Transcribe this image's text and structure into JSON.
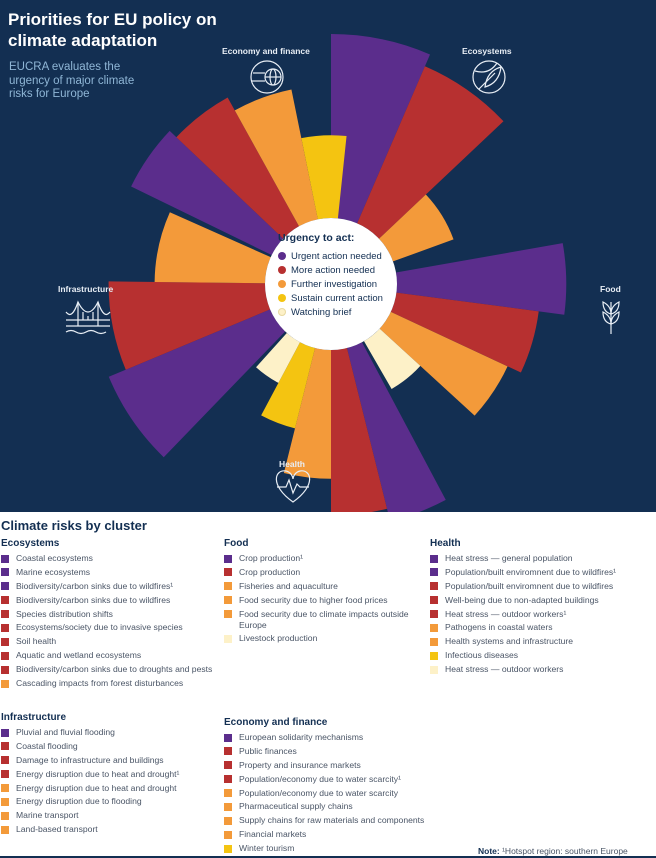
{
  "header": {
    "title": "Priorities for EU policy on climate adaptation",
    "subtitle": "EUCRA evaluates the urgency of major climate risks for Europe"
  },
  "clusters_ring": {
    "economy": "Economy and finance",
    "ecosystems": "Ecosystems",
    "food": "Food",
    "health": "Health",
    "infrastructure": "Infrastructure"
  },
  "legend": {
    "title": "Urgency to act:",
    "items": [
      {
        "label": "Urgent action needed",
        "color": "#5b2d8c"
      },
      {
        "label": "More action needed",
        "color": "#b73030"
      },
      {
        "label": "Further investigation",
        "color": "#f39a3a"
      },
      {
        "label": "Sustain current action",
        "color": "#f4c411"
      },
      {
        "label": "Watching brief",
        "color": "#fdf1c8"
      }
    ]
  },
  "chart_data": {
    "type": "polar-bar",
    "levels": [
      "Urgent action needed",
      "More action needed",
      "Further investigation",
      "Sustain current action",
      "Watching brief"
    ],
    "series": [
      {
        "cluster": "Ecosystems",
        "level": "Urgent action needed",
        "value": 1.0
      },
      {
        "cluster": "Ecosystems",
        "level": "More action needed",
        "value": 0.93
      },
      {
        "cluster": "Ecosystems",
        "level": "Further investigation",
        "value": 0.35
      },
      {
        "cluster": "Food",
        "level": "Urgent action needed",
        "value": 0.92
      },
      {
        "cluster": "Food",
        "level": "More action needed",
        "value": 0.78
      },
      {
        "cluster": "Food",
        "level": "Further investigation",
        "value": 0.7
      },
      {
        "cluster": "Food",
        "level": "Watching brief",
        "value": 0.3
      },
      {
        "cluster": "Health",
        "level": "Urgent action needed",
        "value": 0.97
      },
      {
        "cluster": "Health",
        "level": "More action needed",
        "value": 0.9
      },
      {
        "cluster": "Health",
        "level": "Further investigation",
        "value": 0.7
      },
      {
        "cluster": "Health",
        "level": "Sustain current action",
        "value": 0.45
      },
      {
        "cluster": "Health",
        "level": "Watching brief",
        "value": 0.25
      },
      {
        "cluster": "Infrastructure",
        "level": "Urgent action needed",
        "value": 0.95
      },
      {
        "cluster": "Infrastructure",
        "level": "More action needed",
        "value": 0.85
      },
      {
        "cluster": "Infrastructure",
        "level": "Further investigation",
        "value": 0.6
      },
      {
        "cluster": "Economy and finance",
        "level": "Urgent action needed",
        "value": 0.85
      },
      {
        "cluster": "Economy and finance",
        "level": "More action needed",
        "value": 0.8
      },
      {
        "cluster": "Economy and finance",
        "level": "Further investigation",
        "value": 0.72
      },
      {
        "cluster": "Economy and finance",
        "level": "Sustain current action",
        "value": 0.45
      }
    ]
  },
  "section_title": "Climate risks by cluster",
  "lists": {
    "ecosystems": {
      "title": "Ecosystems",
      "items": [
        {
          "label": "Coastal ecosystems",
          "color": "#5b2d8c"
        },
        {
          "label": "Marine ecosystems",
          "color": "#5b2d8c"
        },
        {
          "label": "Biodiversity/carbon sinks due to wildfires¹",
          "color": "#5b2d8c"
        },
        {
          "label": "Biodiversity/carbon sinks due to wildfires",
          "color": "#b73030"
        },
        {
          "label": "Species distribution shifts",
          "color": "#b73030"
        },
        {
          "label": "Ecosystems/society due to invasive species",
          "color": "#b73030"
        },
        {
          "label": "Soil health",
          "color": "#b73030"
        },
        {
          "label": "Aquatic and wetland ecosystems",
          "color": "#b73030"
        },
        {
          "label": "Biodiversity/carbon sinks due to droughts and pests",
          "color": "#b73030"
        },
        {
          "label": "Cascading impacts from forest disturbances",
          "color": "#f39a3a"
        }
      ]
    },
    "food": {
      "title": "Food",
      "items": [
        {
          "label": "Crop production¹",
          "color": "#5b2d8c"
        },
        {
          "label": "Crop production",
          "color": "#b73030"
        },
        {
          "label": "Fisheries and aquaculture",
          "color": "#f39a3a"
        },
        {
          "label": "Food security due to higher food prices",
          "color": "#f39a3a"
        },
        {
          "label": "Food security due to climate impacts outside Europe",
          "color": "#f39a3a"
        },
        {
          "label": "Livestock production",
          "color": "#fdf1c8"
        }
      ]
    },
    "health": {
      "title": "Health",
      "items": [
        {
          "label": "Heat stress — general population",
          "color": "#5b2d8c"
        },
        {
          "label": "Population/built enviromnent due to wildfires¹",
          "color": "#5b2d8c"
        },
        {
          "label": "Population/built enviromnent due to wildfires",
          "color": "#b73030"
        },
        {
          "label": "Well-being due to non-adapted buildings",
          "color": "#b73030"
        },
        {
          "label": "Heat stress — outdoor workers¹",
          "color": "#b73030"
        },
        {
          "label": "Pathogens in coastal waters",
          "color": "#f39a3a"
        },
        {
          "label": "Health systems and infrastructure",
          "color": "#f39a3a"
        },
        {
          "label": "Infectious diseases",
          "color": "#f4c411"
        },
        {
          "label": "Heat stress — outdoor workers",
          "color": "#fdf1c8"
        }
      ]
    },
    "infrastructure": {
      "title": "Infrastructure",
      "items": [
        {
          "label": "Pluvial and fluvial flooding",
          "color": "#5b2d8c"
        },
        {
          "label": "Coastal flooding",
          "color": "#b73030"
        },
        {
          "label": "Damage to infrastructure and buildings",
          "color": "#b73030"
        },
        {
          "label": "Energy disruption due to heat and drought¹",
          "color": "#b73030"
        },
        {
          "label": "Energy disruption due to heat and drought",
          "color": "#f39a3a"
        },
        {
          "label": "Energy disruption due to flooding",
          "color": "#f39a3a"
        },
        {
          "label": "Marine transport",
          "color": "#f39a3a"
        },
        {
          "label": "Land-based transport",
          "color": "#f39a3a"
        }
      ]
    },
    "economy": {
      "title": "Economy and finance",
      "items": [
        {
          "label": "European solidarity mechanisms",
          "color": "#5b2d8c"
        },
        {
          "label": "Public finances",
          "color": "#b73030"
        },
        {
          "label": "Property and insurance markets",
          "color": "#b73030"
        },
        {
          "label": "Population/economy due to water scarcity¹",
          "color": "#b73030"
        },
        {
          "label": "Population/economy due to water scarcity",
          "color": "#f39a3a"
        },
        {
          "label": "Pharmaceutical supply chains",
          "color": "#f39a3a"
        },
        {
          "label": "Supply chains for raw materials and components",
          "color": "#f39a3a"
        },
        {
          "label": "Financial markets",
          "color": "#f39a3a"
        },
        {
          "label": "Winter tourism",
          "color": "#f4c411"
        }
      ]
    }
  },
  "note": {
    "label": "Note:",
    "text": " ¹Hotspot region: southern Europe"
  }
}
